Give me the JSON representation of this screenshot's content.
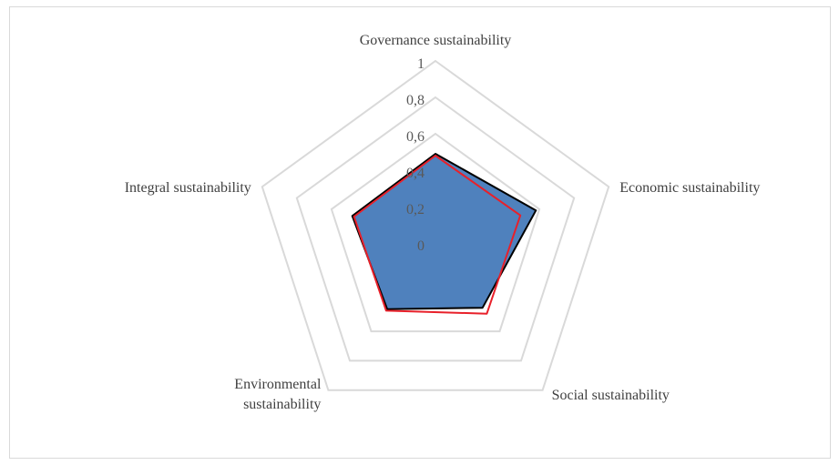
{
  "chart_data": {
    "type": "radar",
    "title": "",
    "axes": [
      "Governance sustainability",
      "Economic sustainability",
      "Social sustainability",
      "Environmental sustainability",
      "Integral sustainability"
    ],
    "axis_label_lines": [
      [
        "Governance sustainability"
      ],
      [
        "Economic sustainability"
      ],
      [
        "Social sustainability"
      ],
      [
        "Environmental",
        "sustainability"
      ],
      [
        "Integral sustainability"
      ]
    ],
    "rlim": [
      0,
      1
    ],
    "ticks": [
      0,
      0.2,
      0.4,
      0.6,
      0.8,
      1
    ],
    "tick_labels": [
      "0",
      "0,2",
      "0,4",
      "0,6",
      "0,8",
      "1"
    ],
    "grid": true,
    "legend": "none",
    "series": [
      {
        "values": [
          0.49,
          0.58,
          0.44,
          0.45,
          0.48
        ],
        "fill": "#4f81bd",
        "stroke": "#000000"
      },
      {
        "values": [
          0.48,
          0.49,
          0.48,
          0.46,
          0.47
        ],
        "fill": "none",
        "stroke": "#e8202a"
      }
    ]
  }
}
